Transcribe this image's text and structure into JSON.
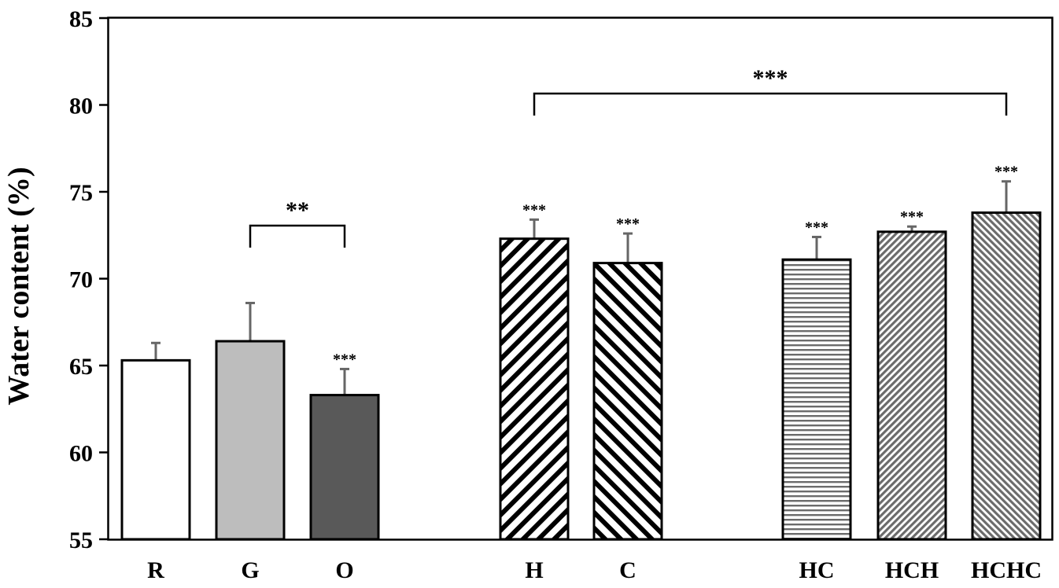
{
  "chart_data": {
    "type": "bar",
    "ylabel": "Water content (%)",
    "ylim": [
      55,
      85
    ],
    "yticks": [
      "55",
      "60",
      "65",
      "70",
      "75",
      "80",
      "85"
    ],
    "grid": false,
    "legend": "none",
    "categories": [
      "R",
      "G",
      "O",
      "H",
      "C",
      "HC",
      "HCH",
      "HCHC"
    ],
    "values": [
      65.3,
      66.4,
      63.3,
      72.3,
      70.9,
      71.1,
      72.7,
      73.8
    ],
    "errors": [
      1.0,
      2.2,
      1.5,
      1.1,
      1.7,
      1.3,
      0.3,
      1.8
    ],
    "significance": [
      "",
      "",
      "***",
      "***",
      "***",
      "***",
      "***",
      "***"
    ],
    "fills": [
      "white",
      "light-gray",
      "dark-gray",
      "diagonal-up-hatch",
      "diagonal-down-hatch",
      "horizontal-hatch",
      "fine-diagonal-up-hatch",
      "fine-diagonal-down-hatch"
    ],
    "colors": {
      "light_gray": "#bdbdbd",
      "dark_gray": "#595959",
      "error_bar": "#666666",
      "outline": "#000000"
    },
    "brackets": [
      {
        "from": "G",
        "to": "O",
        "label": "**"
      },
      {
        "from": "H",
        "to": "HCHC",
        "label": "***"
      }
    ]
  }
}
